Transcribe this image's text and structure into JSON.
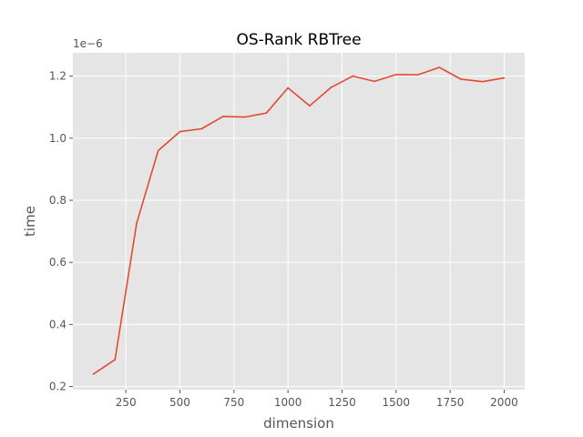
{
  "chart_data": {
    "type": "line",
    "title": "OS-Rank RBTree",
    "xlabel": "dimension",
    "ylabel": "time",
    "y_offset_label": "1e−6",
    "x_ticks": [
      250,
      500,
      750,
      1000,
      1250,
      1500,
      1750,
      2000
    ],
    "x_tick_labels": [
      "250",
      "500",
      "750",
      "1000",
      "1250",
      "1500",
      "1750",
      "2000"
    ],
    "y_ticks": [
      0.2,
      0.4,
      0.6,
      0.8,
      1.0,
      1.2
    ],
    "y_tick_labels": [
      "0.2",
      "0.4",
      "0.6",
      "0.8",
      "1.0",
      "1.2"
    ],
    "xlim": [
      5,
      2095
    ],
    "ylim": [
      0.19,
      1.275
    ],
    "grid": true,
    "series": [
      {
        "color": "#E24A33",
        "x": [
          100,
          200,
          300,
          400,
          500,
          600,
          700,
          800,
          900,
          1000,
          1100,
          1200,
          1300,
          1400,
          1500,
          1600,
          1700,
          1800,
          1900,
          2000
        ],
        "y": [
          0.24,
          0.287,
          0.726,
          0.96,
          1.021,
          1.03,
          1.07,
          1.068,
          1.081,
          1.162,
          1.104,
          1.164,
          1.2,
          1.183,
          1.205,
          1.204,
          1.228,
          1.19,
          1.182,
          1.194
        ]
      }
    ]
  }
}
